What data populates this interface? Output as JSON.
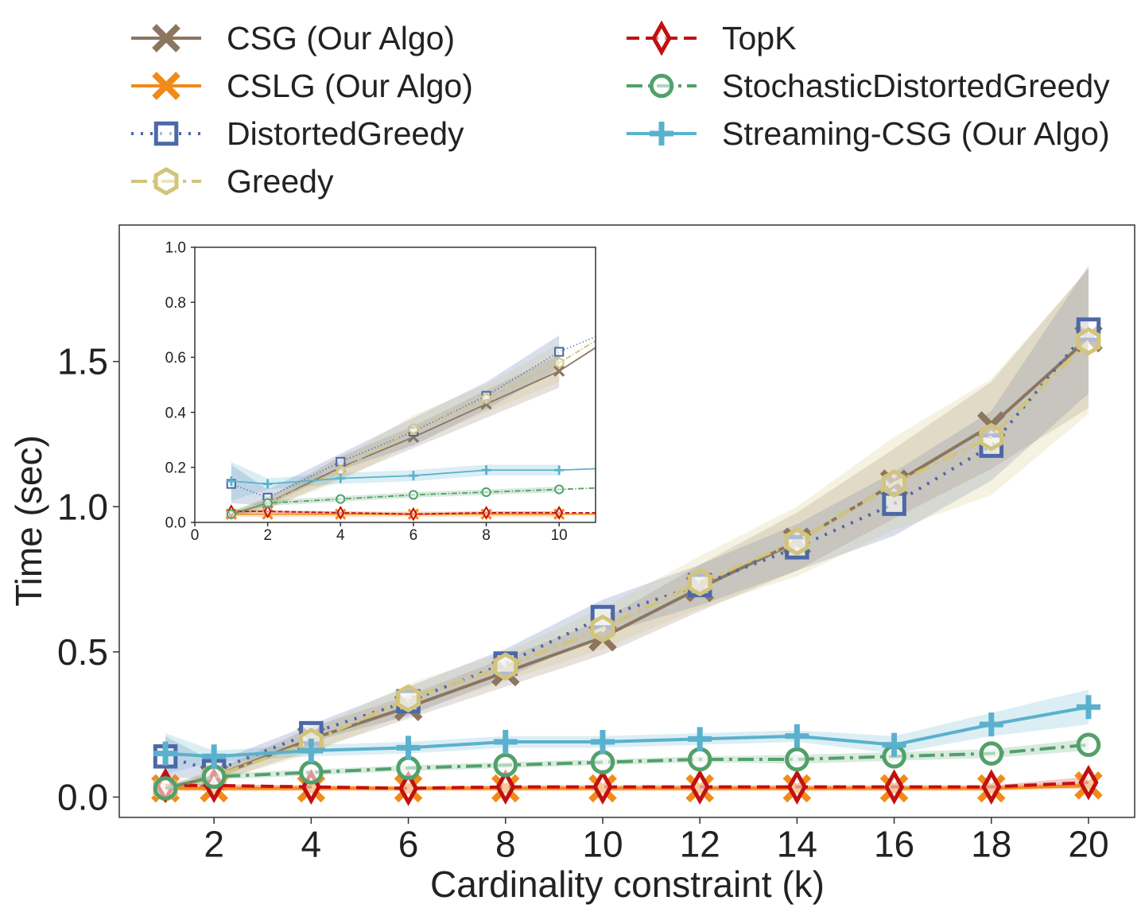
{
  "chart_data": {
    "type": "line",
    "xlabel": "Cardinality constraint (k)",
    "ylabel": "Time (sec)",
    "x": [
      1,
      2,
      4,
      6,
      8,
      10,
      12,
      14,
      16,
      18,
      20
    ],
    "xticks": [
      2,
      4,
      6,
      8,
      10,
      12,
      14,
      16,
      18,
      20
    ],
    "yticks": [
      0.0,
      0.5,
      1.0,
      1.5
    ],
    "xlim": [
      0.05,
      20.95
    ],
    "ylim": [
      -0.07,
      1.97
    ],
    "series": [
      {
        "name": "CSG (Our Algo)",
        "color": "#8c7660",
        "marker": "x",
        "dash": "solid",
        "values": [
          0.03,
          0.07,
          0.2,
          0.31,
          0.43,
          0.55,
          0.72,
          0.88,
          1.08,
          1.28,
          1.58
        ],
        "band": [
          0.01,
          0.02,
          0.04,
          0.04,
          0.05,
          0.06,
          0.08,
          0.1,
          0.12,
          0.15,
          0.24
        ]
      },
      {
        "name": "CSLG (Our Algo)",
        "color": "#f28a1a",
        "marker": "x",
        "dash": "solid",
        "values": [
          0.03,
          0.03,
          0.03,
          0.03,
          0.03,
          0.03,
          0.03,
          0.03,
          0.03,
          0.03,
          0.04
        ],
        "band": [
          0.01,
          0.01,
          0.01,
          0.01,
          0.01,
          0.01,
          0.01,
          0.01,
          0.01,
          0.01,
          0.01
        ]
      },
      {
        "name": "DistortedGreedy",
        "color": "#4c68a8",
        "marker": "square",
        "dash": "dotted",
        "values": [
          0.14,
          0.09,
          0.22,
          0.33,
          0.46,
          0.62,
          0.73,
          0.86,
          1.01,
          1.21,
          1.61
        ],
        "band": [
          0.07,
          0.03,
          0.03,
          0.05,
          0.05,
          0.06,
          0.07,
          0.08,
          0.11,
          0.12,
          0.22
        ]
      },
      {
        "name": "Greedy",
        "color": "#d2c47a",
        "marker": "hexagon",
        "dash": "dashdot",
        "values": [
          0.03,
          0.07,
          0.19,
          0.34,
          0.45,
          0.58,
          0.74,
          0.88,
          1.08,
          1.24,
          1.57
        ],
        "band": [
          0.01,
          0.02,
          0.04,
          0.05,
          0.05,
          0.07,
          0.09,
          0.12,
          0.16,
          0.2,
          0.25
        ]
      },
      {
        "name": "TopK",
        "color": "#c21010",
        "marker": "diamond",
        "dash": "dashed",
        "values": [
          0.04,
          0.04,
          0.035,
          0.03,
          0.035,
          0.035,
          0.035,
          0.035,
          0.035,
          0.035,
          0.05
        ],
        "band": [
          0.005,
          0.005,
          0.005,
          0.005,
          0.005,
          0.005,
          0.005,
          0.005,
          0.005,
          0.005,
          0.02
        ]
      },
      {
        "name": "StochasticDistortedGreedy",
        "color": "#52a06a",
        "marker": "circle",
        "dash": "dashdot",
        "values": [
          0.03,
          0.07,
          0.085,
          0.1,
          0.11,
          0.12,
          0.13,
          0.13,
          0.14,
          0.15,
          0.18
        ],
        "band": [
          0.01,
          0.01,
          0.01,
          0.01,
          0.01,
          0.01,
          0.01,
          0.015,
          0.015,
          0.015,
          0.02
        ]
      },
      {
        "name": "Streaming-CSG (Our Algo)",
        "color": "#5ab1cd",
        "marker": "plus",
        "dash": "solid",
        "values": [
          0.15,
          0.14,
          0.16,
          0.17,
          0.19,
          0.19,
          0.2,
          0.21,
          0.18,
          0.25,
          0.31
        ],
        "band": [
          0.07,
          0.02,
          0.02,
          0.02,
          0.02,
          0.02,
          0.02,
          0.02,
          0.03,
          0.04,
          0.06
        ]
      }
    ],
    "legend": {
      "location": "top",
      "columns": 2
    },
    "inset": {
      "xlim": [
        0,
        11
      ],
      "ylim": [
        0.0,
        1.0
      ],
      "xticks": [
        0,
        2,
        4,
        6,
        8,
        10
      ],
      "yticks": [
        0.0,
        0.2,
        0.4,
        0.6,
        0.8,
        1.0
      ],
      "ytick_labels": [
        "0.0",
        "0.2",
        "0.4",
        "0.6",
        "0.8",
        "1.0"
      ],
      "location": "upper-left"
    }
  }
}
